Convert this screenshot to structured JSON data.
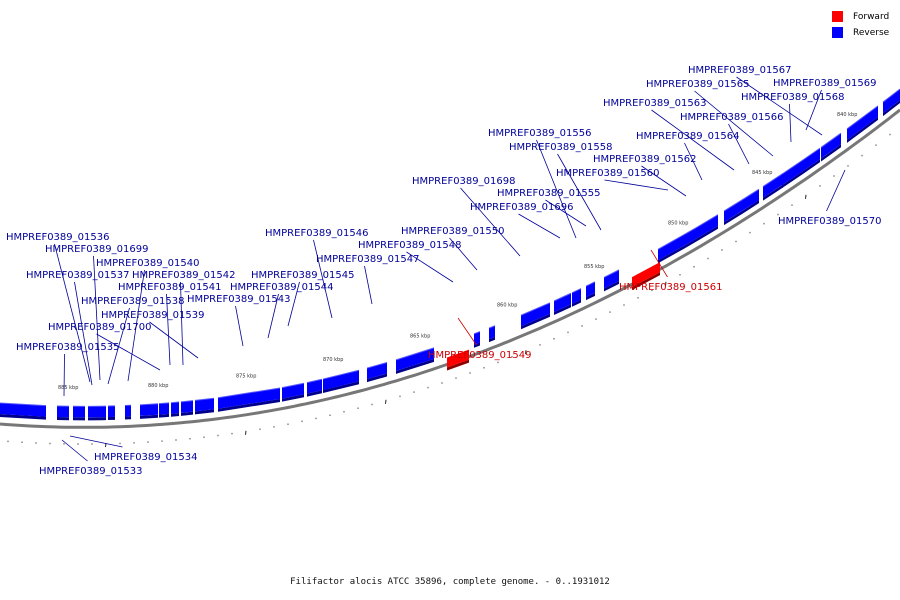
{
  "legend": {
    "forward_label": "Forward",
    "reverse_label": "Reverse",
    "forward_color": "#ff0000",
    "reverse_color": "#0000ff"
  },
  "caption": "Filifactor alocis ATCC 35896, complete genome. - 0..1931012",
  "colors": {
    "backbone": "#777777",
    "forward_label": "#cc0000",
    "reverse_label": "#000099"
  },
  "scale_ticks": [
    "885 kbp",
    "880 kbp",
    "875 kbp",
    "870 kbp",
    "865 kbp",
    "860 kbp",
    "855 kbp",
    "850 kbp",
    "845 kbp",
    "840 kbp"
  ],
  "genes": [
    {
      "name": "HMPREF0389_01536",
      "strand": "reverse"
    },
    {
      "name": "HMPREF0389_01699",
      "strand": "reverse"
    },
    {
      "name": "HMPREF0389_01537",
      "strand": "reverse"
    },
    {
      "name": "HMPREF0389_01540",
      "strand": "reverse"
    },
    {
      "name": "HMPREF0389_01542",
      "strand": "reverse"
    },
    {
      "name": "HMPREF0389_01541",
      "strand": "reverse"
    },
    {
      "name": "HMPREF0389_01538",
      "strand": "reverse"
    },
    {
      "name": "HMPREF0389_01539",
      "strand": "reverse"
    },
    {
      "name": "HMPREF0389_01700",
      "strand": "reverse"
    },
    {
      "name": "HMPREF0389_01535",
      "strand": "reverse"
    },
    {
      "name": "HMPREF0389_01534",
      "strand": "reverse"
    },
    {
      "name": "HMPREF0389_01533",
      "strand": "reverse"
    },
    {
      "name": "HMPREF0389_01546",
      "strand": "reverse"
    },
    {
      "name": "HMPREF0389_01545",
      "strand": "reverse"
    },
    {
      "name": "HMPREF0389_01544",
      "strand": "reverse"
    },
    {
      "name": "HMPREF0389_01543",
      "strand": "reverse"
    },
    {
      "name": "HMPREF0389_01547",
      "strand": "reverse"
    },
    {
      "name": "HMPREF0389_01548",
      "strand": "reverse"
    },
    {
      "name": "HMPREF0389_01550",
      "strand": "reverse"
    },
    {
      "name": "HMPREF0389_01549",
      "strand": "forward"
    },
    {
      "name": "HMPREF0389_01698",
      "strand": "reverse"
    },
    {
      "name": "HMPREF0389_01696",
      "strand": "reverse"
    },
    {
      "name": "HMPREF0389_01555",
      "strand": "reverse"
    },
    {
      "name": "HMPREF0389_01556",
      "strand": "reverse"
    },
    {
      "name": "HMPREF0389_01558",
      "strand": "reverse"
    },
    {
      "name": "HMPREF0389_01560",
      "strand": "reverse"
    },
    {
      "name": "HMPREF0389_01562",
      "strand": "reverse"
    },
    {
      "name": "HMPREF0389_01561",
      "strand": "forward"
    },
    {
      "name": "HMPREF0389_01564",
      "strand": "reverse"
    },
    {
      "name": "HMPREF0389_01563",
      "strand": "reverse"
    },
    {
      "name": "HMPREF0389_01566",
      "strand": "reverse"
    },
    {
      "name": "HMPREF0389_01565",
      "strand": "reverse"
    },
    {
      "name": "HMPREF0389_01568",
      "strand": "reverse"
    },
    {
      "name": "HMPREF0389_01567",
      "strand": "reverse"
    },
    {
      "name": "HMPREF0389_01569",
      "strand": "reverse"
    },
    {
      "name": "HMPREF0389_01570",
      "strand": "reverse"
    }
  ]
}
